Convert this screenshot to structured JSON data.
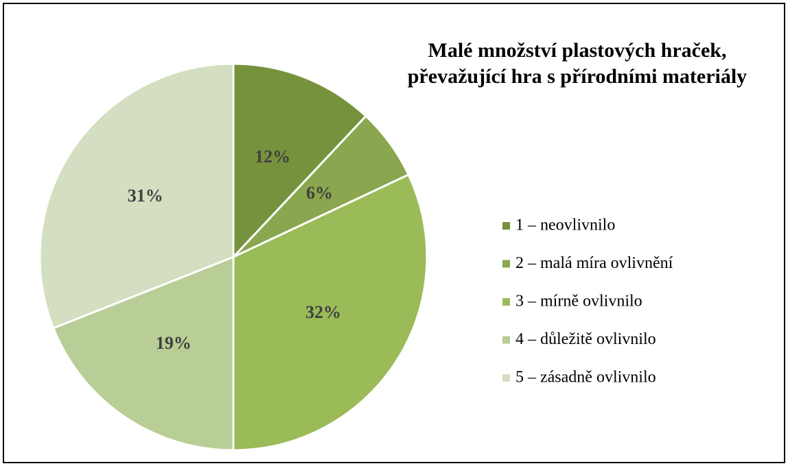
{
  "chart_data": {
    "type": "pie",
    "title": [
      "Malé množství plastových hraček,",
      "převažující hra s přírodními materiály"
    ],
    "categories": [
      "1 – neovlivnilo",
      "2 – malá míra ovlivnění",
      "3 – mírně ovlivnilo",
      "4 – důležitě ovlivnilo",
      "5 – zásadně ovlivnilo"
    ],
    "values": [
      12,
      6,
      32,
      19,
      31
    ],
    "value_labels": [
      "12%",
      "6%",
      "32%",
      "19%",
      "31%"
    ],
    "colors": [
      "#77923c",
      "#8aa64e",
      "#9bbb59",
      "#b9cd96",
      "#d3dfc0"
    ],
    "legend": "right"
  }
}
